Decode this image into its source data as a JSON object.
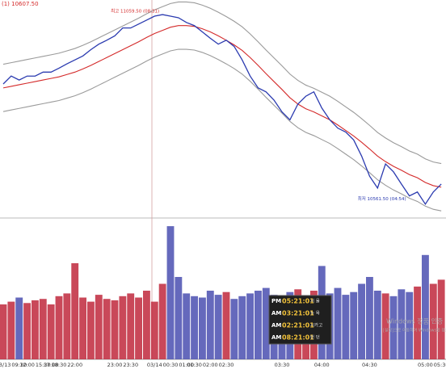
{
  "chart_data": {
    "type": "line",
    "header": "(1) 10607.50",
    "annotations": [
      {
        "text": "최고 11059.50 (08:31)",
        "index": 20
      },
      {
        "text": "최저 10561.50 (04:54)",
        "index": 51
      }
    ],
    "categories": [
      "03/13",
      null,
      "09:30",
      "12:00",
      null,
      "15:30",
      "17:00",
      "18:30",
      null,
      "22:00",
      null,
      null,
      null,
      null,
      "23:00",
      null,
      "23:30",
      null,
      null,
      "03/14",
      null,
      "00:30",
      null,
      "01:00",
      "01:30",
      null,
      "02:00",
      null,
      "02:30",
      null,
      null,
      null,
      null,
      null,
      null,
      "03:30",
      null,
      null,
      null,
      null,
      "04:00",
      null,
      null,
      null,
      null,
      null,
      "04:30",
      null,
      null,
      null,
      null,
      null,
      null,
      "05:00",
      null,
      "05:30"
    ],
    "ylim": [
      10545,
      11094
    ],
    "y2lim": [
      0,
      100
    ],
    "series": [
      {
        "color": "#9a9a9a",
        "values": [
          10931,
          10935,
          10939,
          10943,
          10947,
          10951,
          10955,
          10959,
          10965,
          10971,
          10979,
          10988,
          10998,
          11008,
          11018,
          11028,
          11038,
          11048,
          11059,
          11069,
          11077,
          11085,
          11089,
          11089,
          11087,
          11081,
          11073,
          11063,
          11052,
          11040,
          11026,
          11008,
          10988,
          10967,
          10947,
          10927,
          10906,
          10890,
          10878,
          10870,
          10860,
          10850,
          10837,
          10823,
          10809,
          10793,
          10776,
          10758,
          10744,
          10732,
          10722,
          10711,
          10703,
          10691,
          10683,
          10679
        ]
      },
      {
        "color": "#9a9a9a",
        "values": [
          10811,
          10815,
          10819,
          10823,
          10827,
          10831,
          10835,
          10839,
          10845,
          10851,
          10859,
          10868,
          10878,
          10888,
          10898,
          10908,
          10918,
          10928,
          10939,
          10949,
          10957,
          10965,
          10969,
          10969,
          10967,
          10961,
          10953,
          10943,
          10932,
          10920,
          10906,
          10888,
          10868,
          10847,
          10827,
          10807,
          10786,
          10770,
          10758,
          10750,
          10740,
          10730,
          10717,
          10703,
          10689,
          10673,
          10656,
          10638,
          10624,
          10612,
          10602,
          10591,
          10583,
          10571,
          10563,
          10559
        ]
      },
      {
        "color": "#d42a2a",
        "values": [
          10871,
          10875,
          10879,
          10883,
          10887,
          10891,
          10895,
          10899,
          10905,
          10911,
          10919,
          10928,
          10938,
          10948,
          10958,
          10968,
          10978,
          10988,
          10999,
          11009,
          11017,
          11025,
          11029,
          11029,
          11027,
          11021,
          11013,
          11003,
          10992,
          10980,
          10966,
          10948,
          10928,
          10907,
          10887,
          10867,
          10846,
          10830,
          10818,
          10810,
          10800,
          10790,
          10777,
          10763,
          10749,
          10733,
          10716,
          10698,
          10684,
          10672,
          10662,
          10651,
          10643,
          10631,
          10623,
          10619
        ]
      },
      {
        "color": "#2b3bb0",
        "values": [
          10881,
          10901,
          10891,
          10901,
          10901,
          10911,
          10911,
          10921,
          10932,
          10942,
          10952,
          10968,
          10982,
          10992,
          11003,
          11023,
          11023,
          11033,
          11043,
          11053,
          11057,
          11053,
          11049,
          11037,
          11029,
          11013,
          10997,
          10982,
          10992,
          10976,
          10942,
          10901,
          10871,
          10861,
          10840,
          10810,
          10790,
          10830,
          10850,
          10861,
          10820,
          10790,
          10769,
          10759,
          10739,
          10698,
          10647,
          10617,
          10678,
          10658,
          10627,
          10597,
          10607,
          10576,
          10607,
          10627
        ]
      },
      {
        "color": "#c0283c",
        "axis": "y2",
        "values": [
          40,
          42,
          45,
          41,
          43,
          44,
          40,
          46,
          48,
          70,
          45,
          42,
          47,
          44,
          43,
          46,
          48,
          45,
          50,
          42,
          55,
          97,
          60,
          48,
          46,
          45,
          50,
          47,
          49,
          44,
          46,
          48,
          50,
          52,
          47,
          45,
          49,
          51,
          46,
          50,
          68,
          48,
          52,
          47,
          49,
          55,
          60,
          50,
          48,
          46,
          51,
          49,
          53,
          76,
          55,
          58
        ]
      }
    ]
  },
  "clock": [
    {
      "ampm": "PM",
      "time": "05:21:01",
      "city": "서 울"
    },
    {
      "ampm": "AM",
      "time": "03:21:01",
      "city": "뉴 욕"
    },
    {
      "ampm": "AM",
      "time": "02:21:01",
      "city": "시카고"
    },
    {
      "ampm": "AM",
      "time": "08:21:01",
      "city": "런 던"
    }
  ],
  "watermark": {
    "title": "Windows 정품 인증",
    "text": "[설정]으로 이동하여 Windows를 정품 인증합니다."
  }
}
